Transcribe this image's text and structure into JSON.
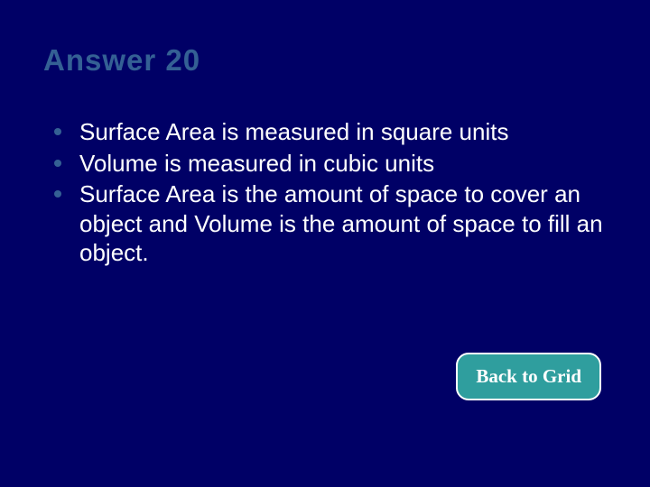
{
  "slide": {
    "title": "Answer 20",
    "bullets": [
      "Surface Area is measured in square units",
      "Volume is measured in cubic units",
      "Surface Area is the amount of space to cover an object and  Volume is the amount of space to fill an object."
    ],
    "button_label": "Back to Grid"
  },
  "style": {
    "background_color": "#000066",
    "title_color": "#346094",
    "title_fontsize": 33,
    "title_fontweight": 900,
    "bullet_text_color": "#ffffff",
    "bullet_marker_color": "#346094",
    "bullet_fontsize": 26,
    "button_bg": "#2f9e9e",
    "button_border": "#ffffff",
    "button_text_color": "#ffffff",
    "button_fontsize": 21,
    "button_border_radius": 14,
    "slide_width": 720,
    "slide_height": 540
  }
}
